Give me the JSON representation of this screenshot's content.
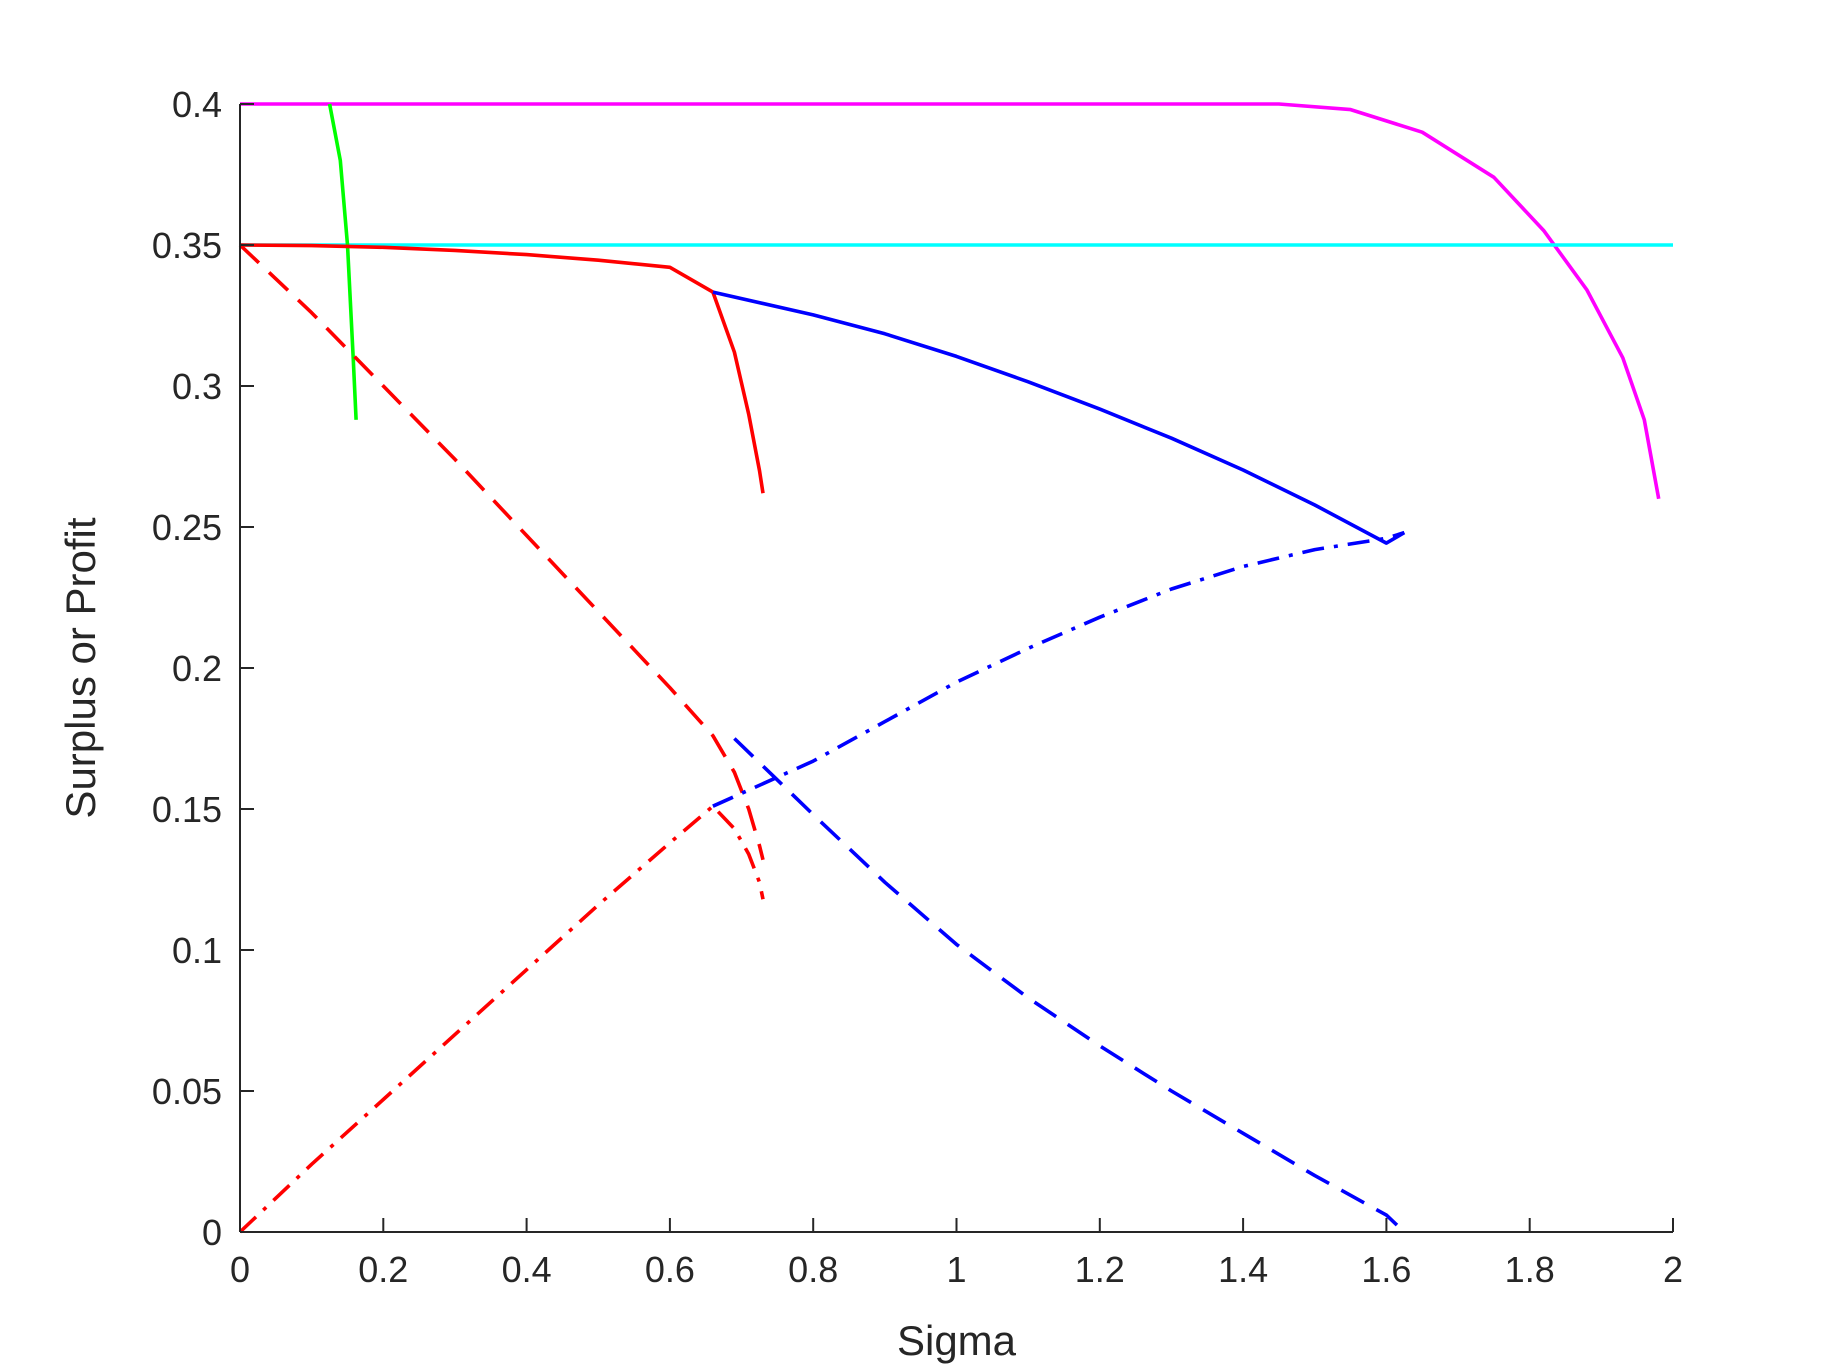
{
  "chart_data": {
    "type": "line",
    "title": "",
    "xlabel": "Sigma",
    "ylabel": "Surplus or Profit",
    "xlim": [
      0,
      2
    ],
    "ylim": [
      0,
      0.4
    ],
    "x_ticks": [
      0,
      0.2,
      0.4,
      0.6,
      0.8,
      1,
      1.2,
      1.4,
      1.6,
      1.8,
      2
    ],
    "x_tick_labels": [
      "0",
      "0.2",
      "0.4",
      "0.6",
      "0.8",
      "1",
      "1.2",
      "1.4",
      "1.6",
      "1.8",
      "2"
    ],
    "y_ticks": [
      0,
      0.05,
      0.1,
      0.15,
      0.2,
      0.25,
      0.3,
      0.35,
      0.4
    ],
    "y_tick_labels": [
      "0",
      "0.05",
      "0.1",
      "0.15",
      "0.2",
      "0.25",
      "0.3",
      "0.35",
      "0.4"
    ],
    "grid": false,
    "legend": "none",
    "series": [
      {
        "color": "#ff00ff",
        "style": "solid",
        "x": [
          0,
          0.4,
          0.8,
          1.2,
          1.45,
          1.55,
          1.65,
          1.75,
          1.82,
          1.88,
          1.93,
          1.96,
          1.98
        ],
        "y": [
          0.4,
          0.4,
          0.4,
          0.4,
          0.4,
          0.398,
          0.39,
          0.374,
          0.355,
          0.334,
          0.31,
          0.288,
          0.26
        ]
      },
      {
        "color": "#00ffff",
        "style": "solid",
        "x": [
          0,
          0.5,
          1,
          1.5,
          2
        ],
        "y": [
          0.35,
          0.35,
          0.35,
          0.35,
          0.35
        ]
      },
      {
        "color": "#00ff00",
        "style": "solid",
        "x": [
          0.125,
          0.14,
          0.15,
          0.158,
          0.162
        ],
        "y": [
          0.4,
          0.38,
          0.35,
          0.31,
          0.288
        ]
      },
      {
        "color": "#ff0000",
        "style": "solid",
        "x": [
          0,
          0.1,
          0.2,
          0.3,
          0.4,
          0.5,
          0.6,
          0.66
        ],
        "y": [
          0.35,
          0.3498,
          0.3492,
          0.3481,
          0.3466,
          0.3446,
          0.3421,
          0.3333
        ]
      },
      {
        "color": "#ff0000",
        "style": "solid",
        "x": [
          0.66,
          0.69,
          0.71,
          0.725,
          0.73
        ],
        "y": [
          0.3333,
          0.312,
          0.29,
          0.27,
          0.262
        ]
      },
      {
        "color": "#0000ff",
        "style": "solid",
        "x": [
          0.66,
          0.8,
          0.9,
          1.0,
          1.1,
          1.2,
          1.3,
          1.4,
          1.5,
          1.6,
          1.625
        ],
        "y": [
          0.3333,
          0.3252,
          0.3185,
          0.3105,
          0.3015,
          0.2918,
          0.2815,
          0.2702,
          0.2578,
          0.2443,
          0.248
        ]
      },
      {
        "color": "#ff0000",
        "style": "dashed",
        "x": [
          0,
          0.1,
          0.2,
          0.3,
          0.4,
          0.5,
          0.6,
          0.66,
          0.69,
          0.71,
          0.725,
          0.73
        ],
        "y": [
          0.35,
          0.326,
          0.3,
          0.274,
          0.247,
          0.22,
          0.193,
          0.176,
          0.163,
          0.15,
          0.137,
          0.132
        ]
      },
      {
        "color": "#0000ff",
        "style": "dashed",
        "x": [
          0.69,
          0.8,
          0.9,
          1.0,
          1.1,
          1.2,
          1.3,
          1.4,
          1.5,
          1.6,
          1.625
        ],
        "y": [
          0.175,
          0.148,
          0.124,
          0.102,
          0.083,
          0.066,
          0.05,
          0.035,
          0.02,
          0.006,
          0
        ]
      },
      {
        "color": "#ff0000",
        "style": "dashdot",
        "x": [
          0,
          0.1,
          0.2,
          0.3,
          0.4,
          0.5,
          0.6,
          0.66,
          0.69,
          0.71,
          0.725,
          0.73
        ],
        "y": [
          0,
          0.024,
          0.047,
          0.07,
          0.093,
          0.116,
          0.138,
          0.151,
          0.143,
          0.134,
          0.124,
          0.118
        ]
      },
      {
        "color": "#0000ff",
        "style": "dashdot",
        "x": [
          0.66,
          0.8,
          0.9,
          1.0,
          1.1,
          1.2,
          1.3,
          1.4,
          1.5,
          1.6,
          1.625
        ],
        "y": [
          0.151,
          0.167,
          0.181,
          0.195,
          0.207,
          0.218,
          0.228,
          0.236,
          0.242,
          0.246,
          0.248
        ]
      }
    ]
  }
}
